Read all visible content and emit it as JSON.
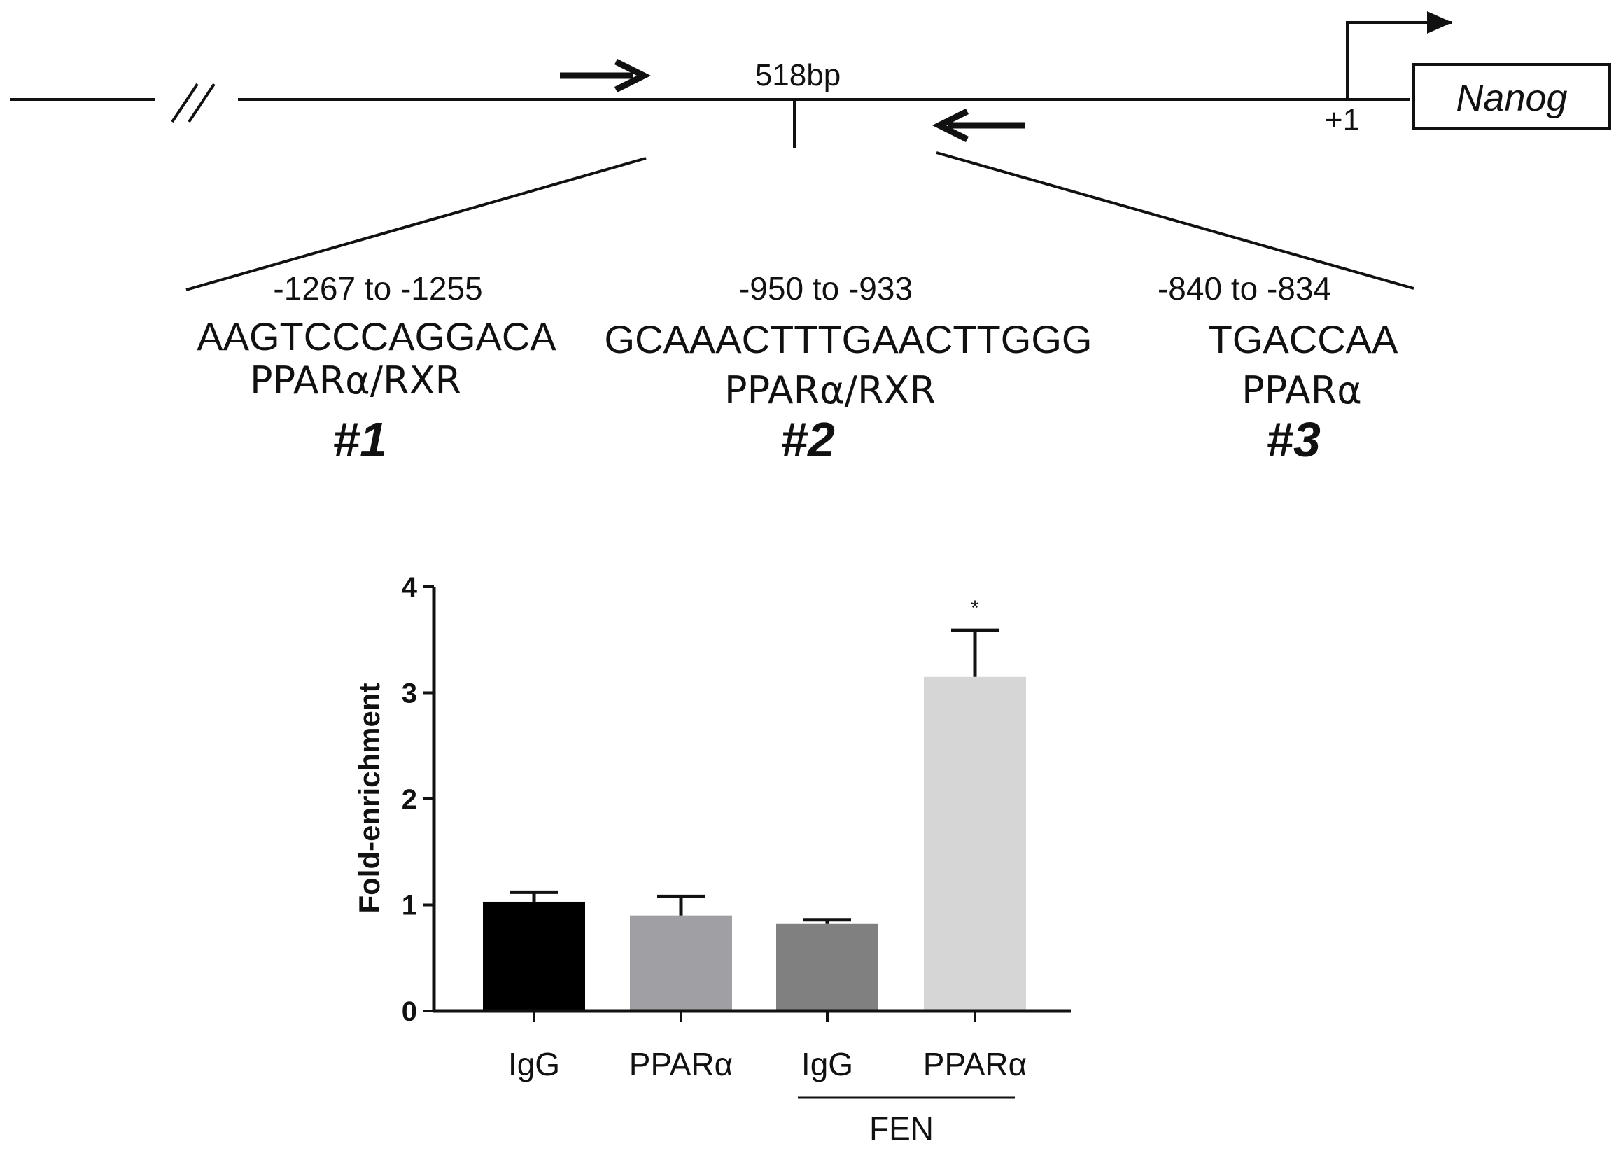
{
  "diagram": {
    "amplicon_label": "518bp",
    "gene_name": "Nanog",
    "tss_label": "+1",
    "sites": [
      {
        "position": "-1267 to -1255",
        "sequence": "AAGTCCCAGGACA",
        "factor": "PPARα/RXR",
        "number": "#1"
      },
      {
        "position": "-950 to -933",
        "sequence": "GCAAACTTTGAACTTGGG",
        "factor": "PPARα/RXR",
        "number": "#2"
      },
      {
        "position": "-840 to -834",
        "sequence": "TGACCAA",
        "factor": "PPARα",
        "number": "#3"
      }
    ]
  },
  "chart_data": {
    "type": "bar",
    "categories": [
      "IgG",
      "PPARα",
      "IgG",
      "PPARα"
    ],
    "group_label": "FEN",
    "values": [
      1.03,
      0.9,
      0.82,
      3.15
    ],
    "errors": [
      0.09,
      0.18,
      0.04,
      0.44
    ],
    "colors": [
      "#000000",
      "#a0a0a4",
      "#808080",
      "#d6d6d6"
    ],
    "significance": [
      "",
      "",
      "",
      "*"
    ],
    "xlabel": "",
    "ylabel": "Fold-enrichment",
    "ylim": [
      0,
      4
    ],
    "yticks": [
      "0",
      "1",
      "2",
      "3",
      "4"
    ],
    "grid": false
  }
}
